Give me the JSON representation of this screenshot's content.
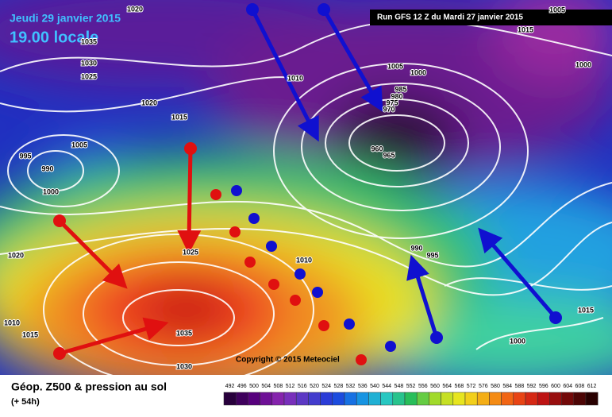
{
  "header": {
    "date": "Jeudi 29 janvier 2015",
    "time": "19.00 locale",
    "run": "Run GFS 12 Z du Mardi 27 janvier 2015"
  },
  "map": {
    "isobar_labels": [
      "1020",
      "1035",
      "1030",
      "1025",
      "1020",
      "1015",
      "1005",
      "995",
      "990",
      "1000",
      "1010",
      "1005",
      "1000",
      "985",
      "980",
      "975",
      "970",
      "960",
      "965",
      "990",
      "995",
      "1000",
      "1015",
      "1020",
      "1025",
      "1010",
      "1035",
      "1030",
      "1010",
      "1015",
      "1005",
      "1015",
      "1000"
    ],
    "copyright": "Copyright © 2015 Meteociel"
  },
  "footer": {
    "title": "Géop. Z500 & pression au sol",
    "lead": "(+ 54h)",
    "scale": [
      492,
      496,
      500,
      504,
      508,
      512,
      516,
      520,
      524,
      528,
      532,
      536,
      540,
      544,
      548,
      552,
      556,
      560,
      564,
      568,
      572,
      576,
      580,
      584,
      588,
      592,
      596,
      600,
      604,
      608,
      612
    ]
  }
}
